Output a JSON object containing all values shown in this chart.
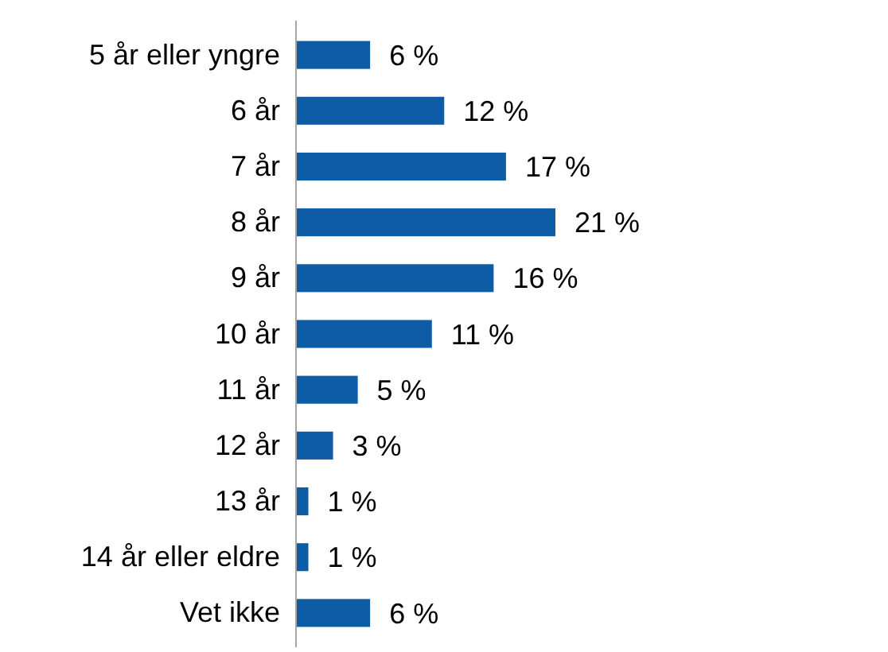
{
  "chart_data": {
    "type": "bar",
    "orientation": "horizontal",
    "categories": [
      "5 år eller yngre",
      "6 år",
      "7 år",
      "8 år",
      "9 år",
      "10 år",
      "11 år",
      "12 år",
      "13 år",
      "14 år eller eldre",
      "Vet ikke"
    ],
    "values": [
      6,
      12,
      17,
      21,
      16,
      11,
      5,
      3,
      1,
      1,
      6
    ],
    "value_labels": [
      "6 %",
      "12 %",
      "17 %",
      "21 %",
      "16 %",
      "11 %",
      "5 %",
      "3 %",
      "1 %",
      "1 %",
      "6 %"
    ],
    "color": "#0e5ca5"
  }
}
